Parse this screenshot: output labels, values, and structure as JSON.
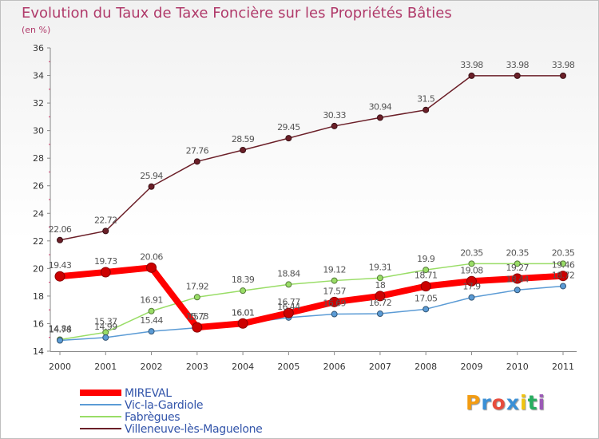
{
  "chart_data": {
    "type": "line",
    "title": "Evolution du Taux de Taxe Foncière sur les Propriétés Bâties",
    "subtitle": "(en %)",
    "x": [
      "2000",
      "2001",
      "2002",
      "2003",
      "2004",
      "2005",
      "2006",
      "2007",
      "2008",
      "2009",
      "2010",
      "2011"
    ],
    "ylim": [
      14,
      36
    ],
    "yticks": [
      "14",
      "16",
      "18",
      "20",
      "22",
      "24",
      "26",
      "28",
      "30",
      "32",
      "34",
      "36"
    ],
    "series": [
      {
        "name": "Villeneuve-lès-Maguelone",
        "color": "#6b1f28",
        "values": [
          22.06,
          22.72,
          25.94,
          27.76,
          28.59,
          29.45,
          30.33,
          30.94,
          31.5,
          33.98,
          33.98,
          33.98
        ],
        "labels": [
          "22.06",
          "22.72",
          "25.94",
          "27.76",
          "28.59",
          "29.45",
          "30.33",
          "30.94",
          "31.5",
          "33.98",
          "33.98",
          "33.98"
        ]
      },
      {
        "name": "Fabrègues",
        "color": "#99dd66",
        "values": [
          14.84,
          15.37,
          16.91,
          17.92,
          18.39,
          18.84,
          19.12,
          19.31,
          19.9,
          20.35,
          20.35,
          20.35
        ],
        "labels": [
          "14.84",
          "15.37",
          "16.91",
          "17.92",
          "18.39",
          "18.84",
          "19.12",
          "19.31",
          "19.9",
          "20.35",
          "20.35",
          "20.35"
        ]
      },
      {
        "name": "Vic-la-Gardiole",
        "color": "#5b9bd5",
        "values": [
          14.78,
          14.99,
          15.44,
          15.7,
          16.01,
          16.44,
          16.69,
          16.72,
          17.05,
          17.9,
          18.44,
          18.72
        ],
        "labels": [
          "14.78",
          "14.99",
          "15.44",
          "15.7",
          "16.01",
          "16.44",
          "16.69",
          "16.72",
          "17.05",
          "17.9",
          "18.44",
          "18.72"
        ]
      },
      {
        "name": "MIREVAL",
        "color": "#ff0000",
        "values": [
          19.43,
          19.73,
          20.06,
          15.73,
          16.01,
          16.77,
          17.57,
          18,
          18.71,
          19.08,
          19.27,
          19.46
        ],
        "labels": [
          "19.43",
          "19.73",
          "20.06",
          "15.73",
          "16.01",
          "16.77",
          "17.57",
          "18",
          "18.71",
          "19.08",
          "19.27",
          "19.46"
        ]
      }
    ],
    "legend": [
      {
        "name": "MIREVAL",
        "color": "#ff0000"
      },
      {
        "name": "Vic-la-Gardiole",
        "color": "#5b9bd5"
      },
      {
        "name": "Fabrègues",
        "color": "#99dd66"
      },
      {
        "name": "Villeneuve-lès-Maguelone",
        "color": "#6b1f28"
      }
    ]
  },
  "logo": {
    "letters": [
      "P",
      "r",
      "o",
      "x",
      "i",
      "t",
      "i"
    ],
    "colors": [
      "#f39c12",
      "#3a8fd6",
      "#e74c3c",
      "#3a8fd6",
      "#f1c40f",
      "#27ae60",
      "#9b59b6"
    ]
  }
}
